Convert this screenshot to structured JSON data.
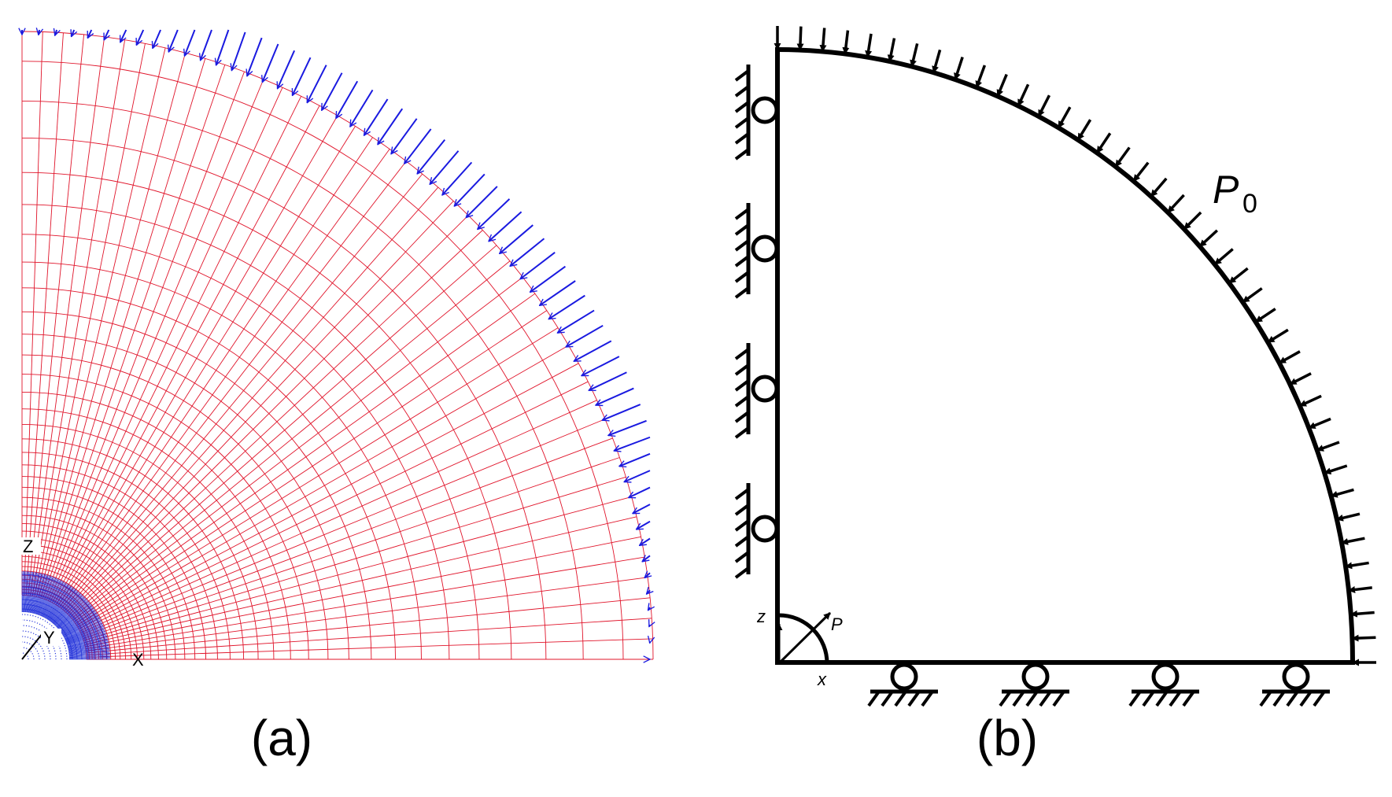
{
  "figure": {
    "panel_a": {
      "caption": "(a)",
      "axis_labels": {
        "z": "Z",
        "y": "Y",
        "x": "X"
      },
      "colors": {
        "mesh": "#e0142a",
        "dense_mesh": "#1a2ad8",
        "load_arrows": "#1a1ae0"
      }
    },
    "panel_b": {
      "caption": "(b)",
      "pressure_label": "P",
      "pressure_subscript": "0",
      "axis_labels": {
        "z": "z",
        "x": "x",
        "p": "P"
      },
      "colors": {
        "lines": "#000000"
      }
    }
  }
}
